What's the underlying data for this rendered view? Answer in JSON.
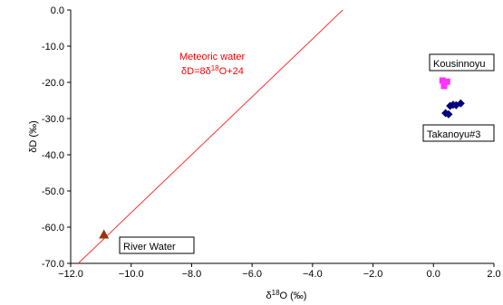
{
  "chart_data": {
    "type": "scatter",
    "title": "",
    "xlabel": "δ18O (‰)",
    "xlabel_parts": [
      "δ",
      "18",
      "O (‰)"
    ],
    "ylabel": "δD (‰)",
    "xlim": [
      -12.0,
      2.0
    ],
    "ylim": [
      -70.0,
      0.0
    ],
    "x_ticks": [
      -12.0,
      -10.0,
      -8.0,
      -6.0,
      -4.0,
      -2.0,
      0.0,
      2.0
    ],
    "y_ticks": [
      0.0,
      -10.0,
      -20.0,
      -30.0,
      -40.0,
      -50.0,
      -60.0,
      -70.0
    ],
    "x_tick_labels": [
      "−12.0",
      "−10.0",
      "−8.0",
      "−6.0",
      "−4.0",
      "−2.0",
      "0.0",
      "2.0"
    ],
    "y_tick_labels": [
      "0.0",
      "-10.0",
      "-20.0",
      "-30.0",
      "-40.0",
      "-50.0",
      "-60.0",
      "-70.0"
    ],
    "grid": false,
    "meteoric_line": {
      "label": "Meteoric water",
      "equation": "δD=8δ18O+24",
      "equation_parts": [
        "δD=8δ",
        "18",
        "O+24"
      ],
      "slope": 8,
      "intercept": 24,
      "color": "#ff3030"
    },
    "series": [
      {
        "name": "Kousinnoyu",
        "marker": "square",
        "color": "#ff33ff",
        "points": [
          [
            0.3,
            -19.5
          ],
          [
            0.35,
            -20.3
          ],
          [
            0.45,
            -19.8
          ],
          [
            0.35,
            -21.0
          ]
        ]
      },
      {
        "name": "Takanoyu#3",
        "marker": "diamond",
        "color": "#000080",
        "points": [
          [
            0.55,
            -26.5
          ],
          [
            0.65,
            -26.2
          ],
          [
            0.75,
            -26.3
          ],
          [
            0.9,
            -25.8
          ],
          [
            0.4,
            -28.5
          ],
          [
            0.5,
            -28.8
          ]
        ]
      },
      {
        "name": "River Water",
        "marker": "triangle",
        "color": "#993300",
        "points": [
          [
            -10.9,
            -62.0
          ]
        ]
      }
    ]
  }
}
